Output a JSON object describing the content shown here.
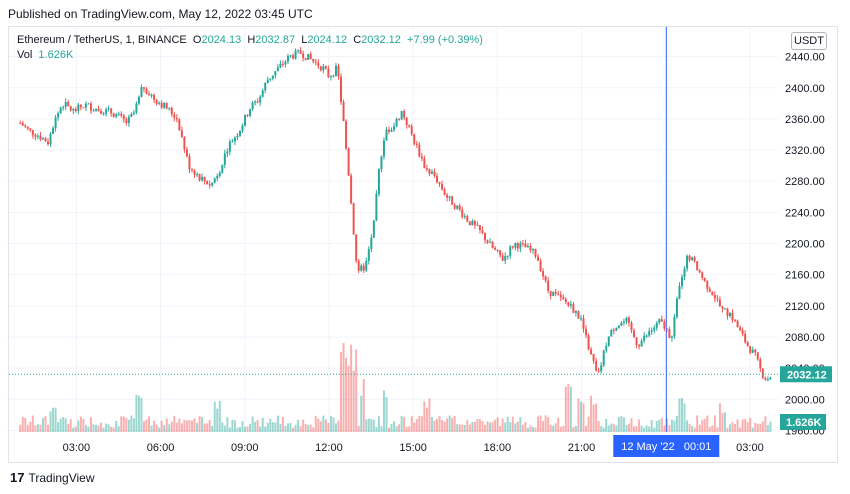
{
  "header": {
    "published": "Published on TradingView.com, May 12, 2022 03:45 UTC"
  },
  "legend": {
    "symbol": "Ethereum / TetherUS, 1, BINANCE",
    "o_label": "O",
    "o": "2024.13",
    "h_label": "H",
    "h": "2032.87",
    "l_label": "L",
    "l": "2024.12",
    "c_label": "C",
    "c": "2032.12",
    "change": "+7.99 (+0.39%)",
    "vol_label": "Vol",
    "vol": "1.626K"
  },
  "currency_button": "USDT",
  "footer": {
    "logo_text": "TradingView"
  },
  "colors": {
    "up": "#26a69a",
    "down": "#ef5350",
    "crosshair": "#2962ff",
    "last_price": "#26a69a"
  },
  "chart_data": {
    "type": "candlestick",
    "title": "Ethereum / TetherUS, 1, BINANCE",
    "x_ticks": [
      "03:00",
      "06:00",
      "09:00",
      "12:00",
      "15:00",
      "18:00",
      "21:00",
      "00:01",
      "03:00"
    ],
    "crosshair_label": "12 May '22   00:01",
    "y_ticks": [
      "2440.00",
      "2400.00",
      "2360.00",
      "2320.00",
      "2280.00",
      "2240.00",
      "2200.00",
      "2160.00",
      "2120.00",
      "2080.00",
      "2040.00",
      "2000.00",
      "1960.00"
    ],
    "ylim": [
      1958,
      2478
    ],
    "last_price": 2032.12,
    "last_price_label": "2032.12",
    "last_volume_label": "1.626K",
    "price_path": [
      [
        1.0,
        2355
      ],
      [
        1.3,
        2345
      ],
      [
        1.6,
        2340
      ],
      [
        2.0,
        2330
      ],
      [
        2.2,
        2355
      ],
      [
        2.5,
        2380
      ],
      [
        2.9,
        2370
      ],
      [
        3.3,
        2378
      ],
      [
        3.8,
        2372
      ],
      [
        4.3,
        2368
      ],
      [
        4.8,
        2355
      ],
      [
        5.1,
        2370
      ],
      [
        5.3,
        2405
      ],
      [
        5.8,
        2385
      ],
      [
        6.2,
        2375
      ],
      [
        6.6,
        2360
      ],
      [
        7.0,
        2300
      ],
      [
        7.4,
        2285
      ],
      [
        7.8,
        2275
      ],
      [
        8.1,
        2295
      ],
      [
        8.4,
        2325
      ],
      [
        8.8,
        2345
      ],
      [
        9.2,
        2375
      ],
      [
        9.5,
        2385
      ],
      [
        9.8,
        2410
      ],
      [
        10.2,
        2425
      ],
      [
        10.6,
        2440
      ],
      [
        11.0,
        2445
      ],
      [
        11.4,
        2435
      ],
      [
        11.8,
        2425
      ],
      [
        12.0,
        2415
      ],
      [
        12.3,
        2425
      ],
      [
        12.6,
        2330
      ],
      [
        12.8,
        2250
      ],
      [
        13.0,
        2165
      ],
      [
        13.3,
        2170
      ],
      [
        13.6,
        2225
      ],
      [
        13.8,
        2300
      ],
      [
        14.0,
        2345
      ],
      [
        14.3,
        2350
      ],
      [
        14.6,
        2370
      ],
      [
        15.0,
        2335
      ],
      [
        15.4,
        2300
      ],
      [
        15.8,
        2285
      ],
      [
        16.2,
        2260
      ],
      [
        16.6,
        2245
      ],
      [
        17.0,
        2228
      ],
      [
        17.4,
        2215
      ],
      [
        17.8,
        2195
      ],
      [
        18.2,
        2180
      ],
      [
        18.6,
        2200
      ],
      [
        19.0,
        2195
      ],
      [
        19.4,
        2185
      ],
      [
        19.8,
        2140
      ],
      [
        20.2,
        2130
      ],
      [
        20.6,
        2120
      ],
      [
        21.0,
        2100
      ],
      [
        21.3,
        2060
      ],
      [
        21.6,
        2030
      ],
      [
        21.9,
        2075
      ],
      [
        22.2,
        2095
      ],
      [
        22.6,
        2100
      ],
      [
        23.0,
        2070
      ],
      [
        23.4,
        2085
      ],
      [
        23.8,
        2100
      ],
      [
        24.2,
        2080
      ],
      [
        24.4,
        2125
      ],
      [
        24.6,
        2165
      ],
      [
        24.8,
        2185
      ],
      [
        25.1,
        2170
      ],
      [
        25.4,
        2150
      ],
      [
        25.7,
        2135
      ],
      [
        26.0,
        2115
      ],
      [
        26.3,
        2110
      ],
      [
        26.6,
        2090
      ],
      [
        26.9,
        2070
      ],
      [
        27.2,
        2055
      ],
      [
        27.4,
        2035
      ],
      [
        27.6,
        2025
      ],
      [
        27.8,
        2032
      ]
    ],
    "volume_spikes_hours": [
      [
        2.2,
        0.3
      ],
      [
        5.2,
        0.4
      ],
      [
        8.0,
        0.35
      ],
      [
        12.5,
        0.85
      ],
      [
        12.7,
        0.95
      ],
      [
        12.9,
        0.8
      ],
      [
        13.2,
        0.55
      ],
      [
        14.0,
        0.5
      ],
      [
        15.5,
        0.35
      ],
      [
        20.5,
        0.55
      ],
      [
        21.0,
        0.45
      ],
      [
        21.4,
        0.4
      ],
      [
        24.6,
        0.45
      ],
      [
        26.0,
        0.3
      ]
    ]
  }
}
